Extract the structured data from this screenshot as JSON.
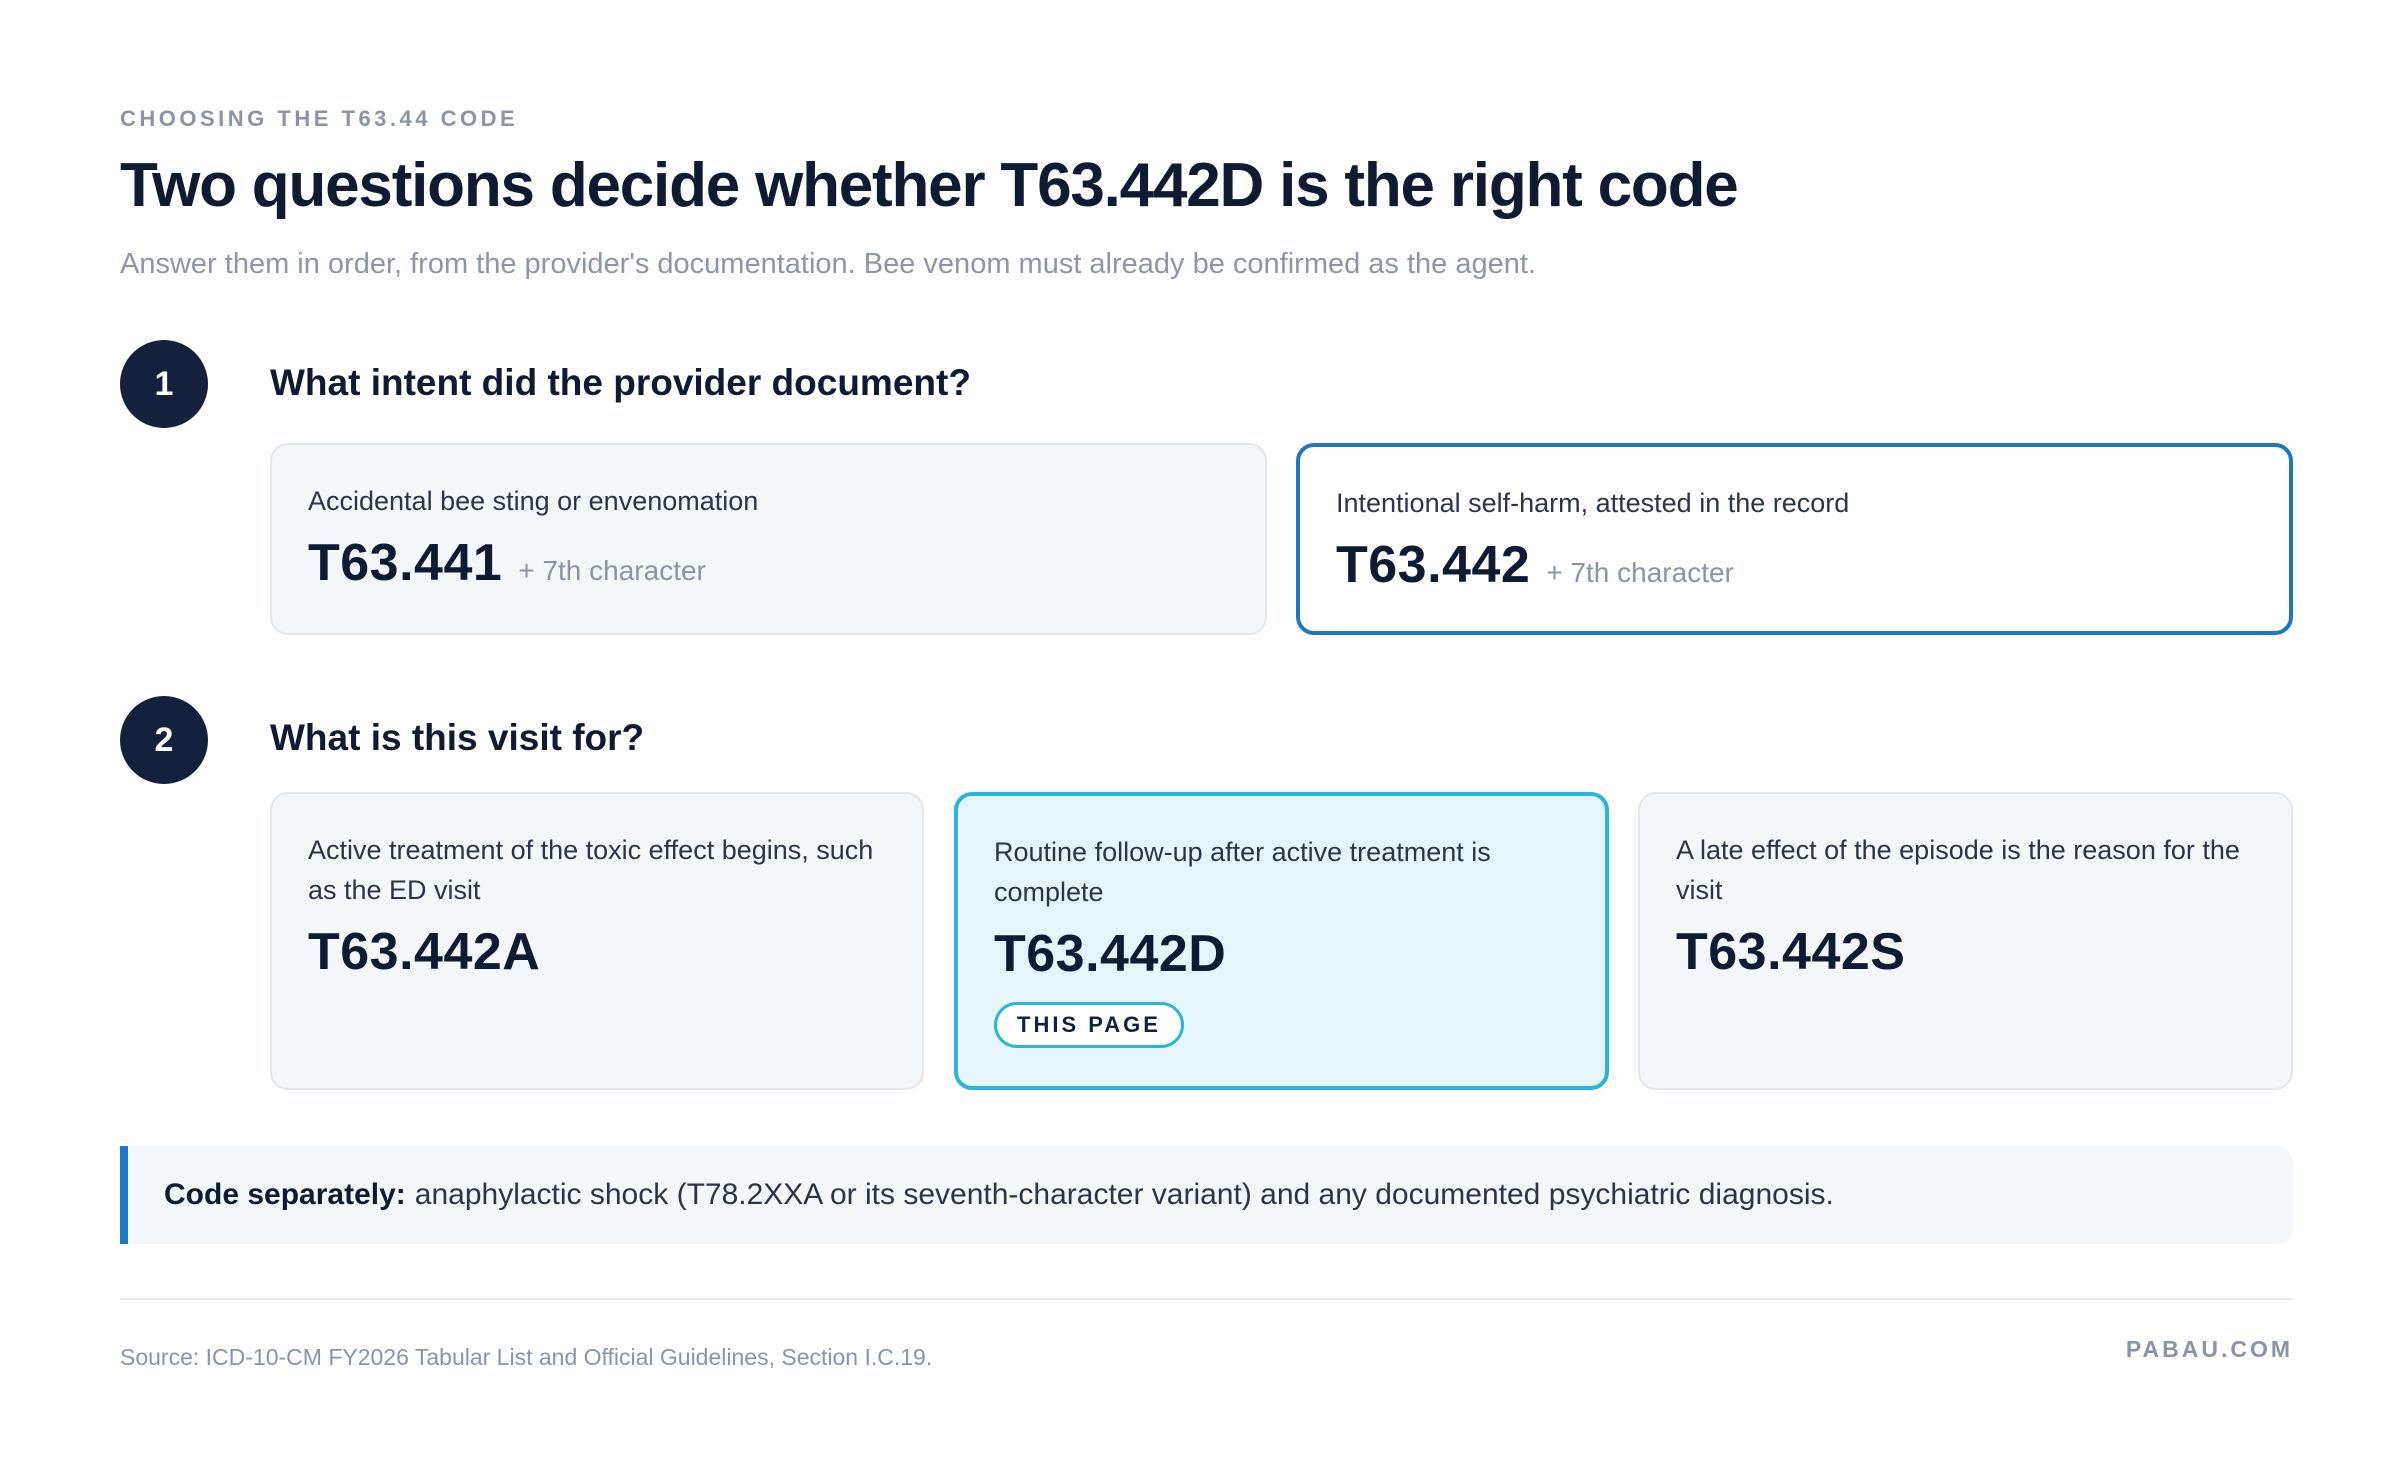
{
  "header": {
    "eyebrow": "CHOOSING THE T63.44 CODE",
    "title": "Two questions decide whether T63.442D is the right code",
    "subtitle": "Answer them in order, from the provider's documentation. Bee venom must already be confirmed as the agent."
  },
  "steps": [
    {
      "number": "1",
      "question": "What intent did the provider document?",
      "options": [
        {
          "label": "Accidental bee sting or envenomation",
          "code": "T63.441",
          "suffix": "+ 7th character"
        },
        {
          "label": "Intentional self-harm, attested in the record",
          "code": "T63.442",
          "suffix": "+ 7th character",
          "selected": true
        }
      ]
    },
    {
      "number": "2",
      "question": "What is this visit for?",
      "options": [
        {
          "label": "Active treatment of the toxic effect begins, such as the ED visit",
          "code": "T63.442A"
        },
        {
          "label": "Routine follow-up after active treatment is complete",
          "code": "T63.442D",
          "badge": "THIS PAGE",
          "selected": true
        },
        {
          "label": "A late effect of the episode is the reason for the visit",
          "code": "T63.442S"
        }
      ]
    }
  ],
  "note": {
    "strong": "Code separately:",
    "text": "anaphylactic shock (T78.2XXA or its seventh-character variant) and any documented psychiatric diagnosis."
  },
  "footer": {
    "source": "Source: ICD-10-CM FY2026 Tabular List and Official Guidelines, Section I.C.19.",
    "brand": "PABAU.COM"
  },
  "colors": {
    "navy": "#14213d",
    "intent_highlight": "#1d78c1",
    "visit_highlight": "#29b6d8",
    "visit_highlight_bg": "#e4f6fb",
    "card_bg": "#f4f7fa"
  }
}
